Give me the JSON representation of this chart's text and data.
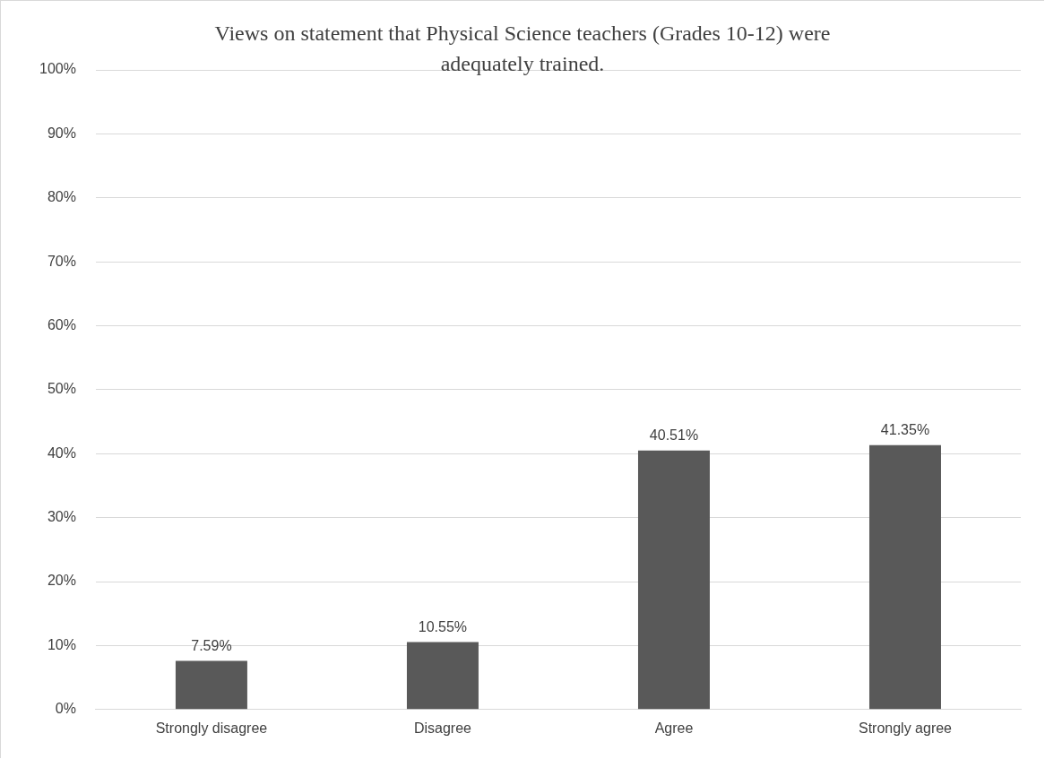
{
  "chart_data": {
    "type": "bar",
    "title": "Views on statement that Physical Science teachers (Grades 10-12) were adequately trained.",
    "categories": [
      "Strongly disagree",
      "Disagree",
      "Agree",
      "Strongly agree"
    ],
    "values": [
      7.59,
      10.55,
      40.51,
      41.35
    ],
    "value_labels": [
      "7.59%",
      "10.55%",
      "40.51%",
      "41.35%"
    ],
    "color": "#595959",
    "ylim": [
      0,
      100
    ],
    "yticks": [
      {
        "value": 0,
        "label": "0%"
      },
      {
        "value": 10,
        "label": "10%"
      },
      {
        "value": 20,
        "label": "20%"
      },
      {
        "value": 30,
        "label": "30%"
      },
      {
        "value": 40,
        "label": "40%"
      },
      {
        "value": 50,
        "label": "50%"
      },
      {
        "value": 60,
        "label": "60%"
      },
      {
        "value": 70,
        "label": "70%"
      },
      {
        "value": 80,
        "label": "80%"
      },
      {
        "value": 90,
        "label": "90%"
      },
      {
        "value": 100,
        "label": "100%"
      }
    ],
    "grid": "y",
    "legend": false
  }
}
